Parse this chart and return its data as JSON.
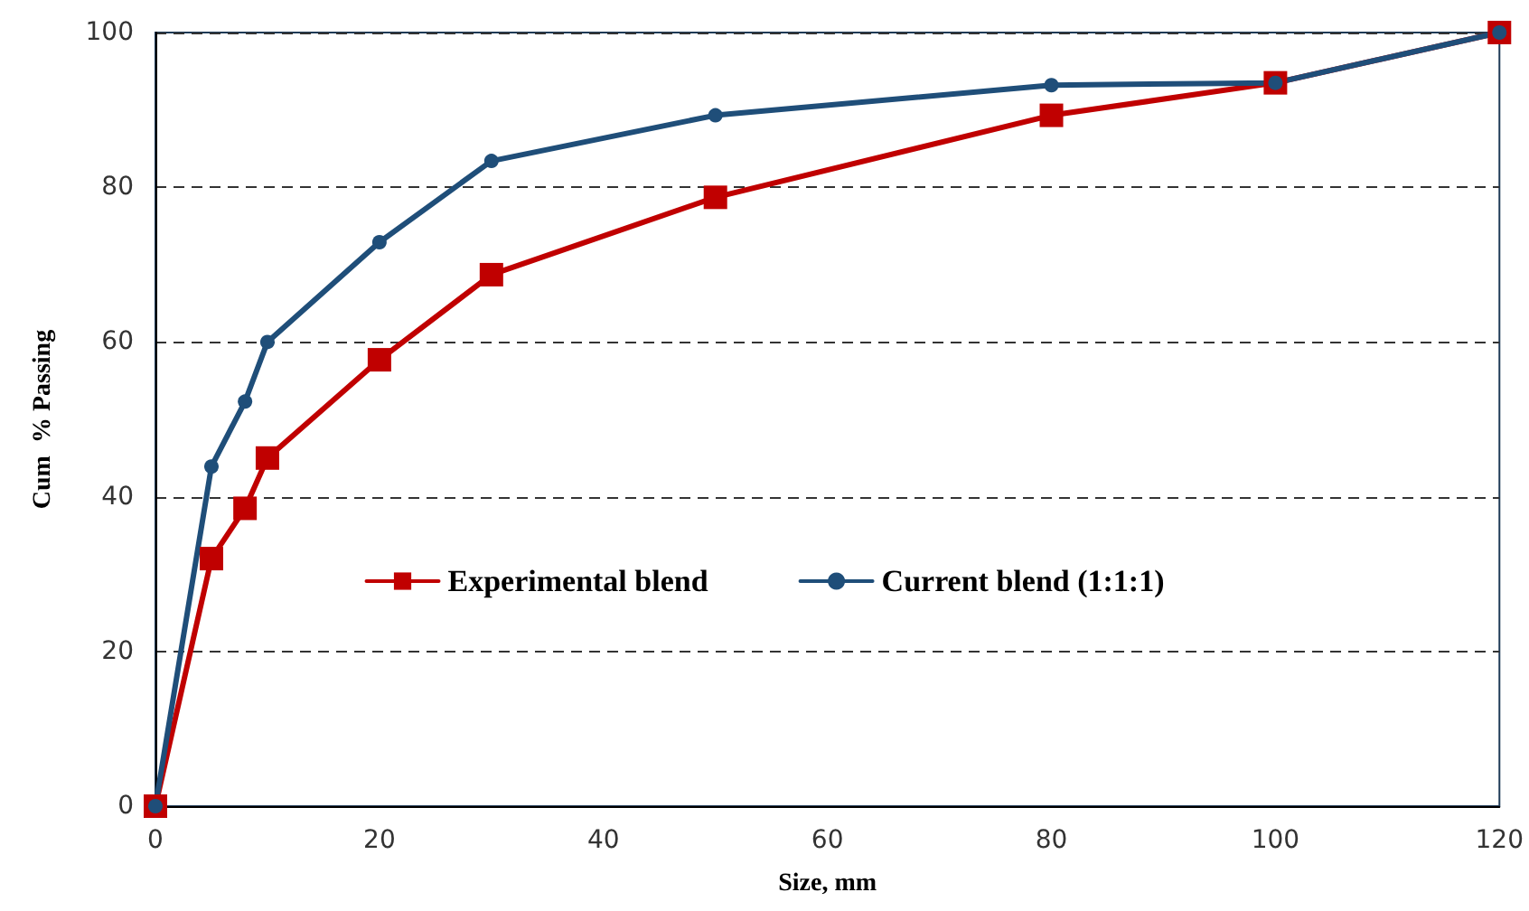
{
  "chart_data": {
    "type": "line",
    "xlabel": "Size, mm",
    "ylabel": "Cum  % Passing",
    "x": [
      0,
      5,
      8,
      10,
      20,
      30,
      50,
      80,
      100,
      120
    ],
    "series": [
      {
        "name": "Experimental blend",
        "color": "#c00000",
        "marker": "square",
        "values": [
          0,
          32,
          38.5,
          45,
          57.7,
          68.7,
          78.7,
          89.3,
          93.5,
          100
        ]
      },
      {
        "name": "Current blend (1:1:1)",
        "color": "#1f4e79",
        "marker": "circle",
        "values": [
          0,
          43.9,
          52.3,
          60,
          72.9,
          83.4,
          89.3,
          93.2,
          93.5,
          100
        ]
      }
    ],
    "xlim": [
      0,
      120
    ],
    "xticks": [
      0,
      20,
      40,
      60,
      80,
      100,
      120
    ],
    "ylim": [
      0,
      100
    ],
    "yticks": [
      0,
      20,
      40,
      60,
      80,
      100
    ],
    "grid": "y",
    "legend": "bottom",
    "line_style": "solid"
  }
}
